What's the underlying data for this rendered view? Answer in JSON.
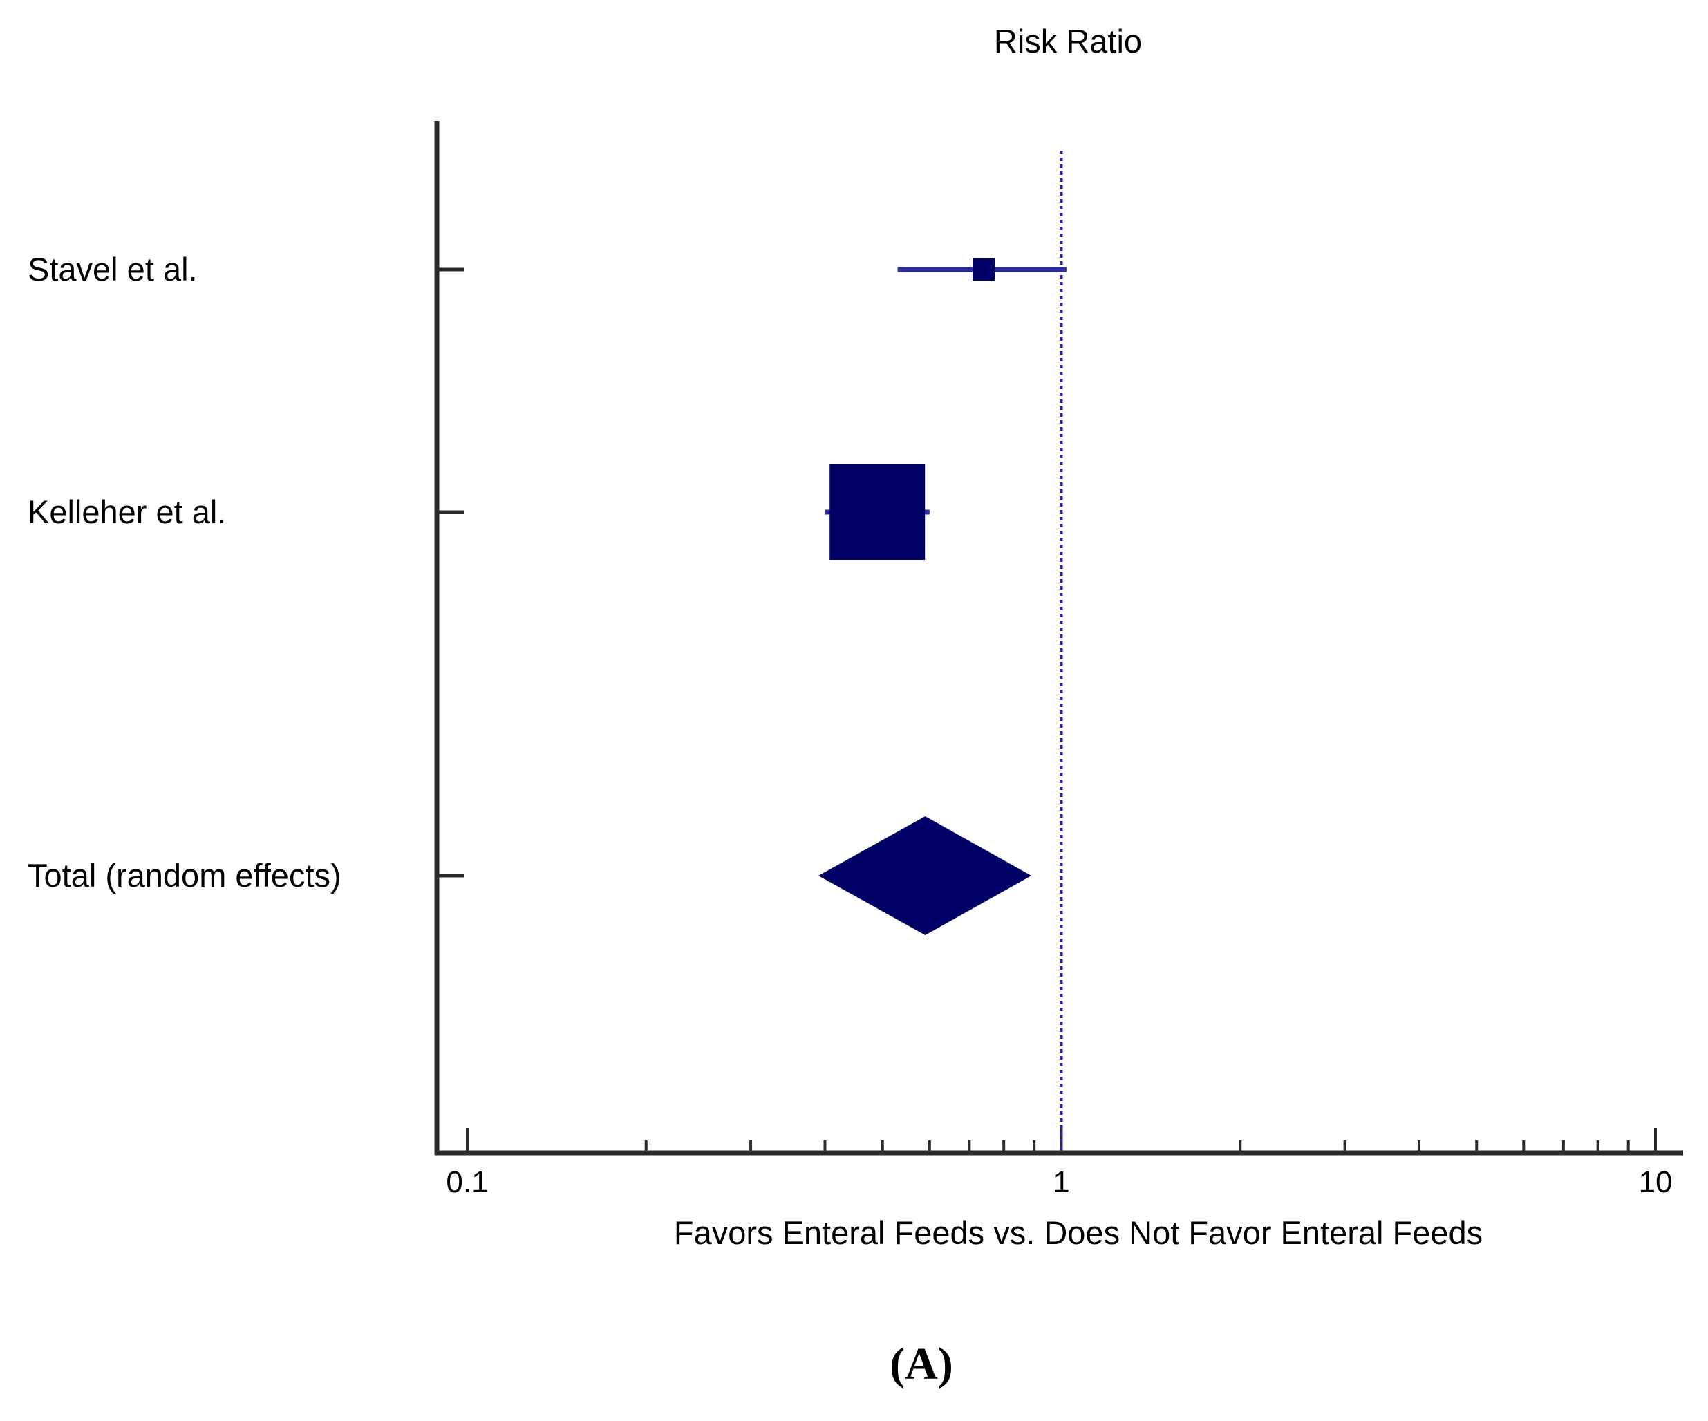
{
  "chart_data": {
    "type": "forest",
    "title": "Risk Ratio",
    "xlabel": "Favors Enteral Feeds vs. Does Not Favor Enteral Feeds",
    "panel_label": "(A)",
    "x_scale": "log",
    "xlim": [
      0.095,
      11
    ],
    "x_ticks": [
      {
        "value": 0.1,
        "label": "0.1"
      },
      {
        "value": 1,
        "label": "1"
      },
      {
        "value": 10,
        "label": "10"
      }
    ],
    "x_minor_ticks": [
      0.2,
      0.3,
      0.4,
      0.5,
      0.6,
      0.7,
      0.8,
      0.9,
      2,
      3,
      4,
      5,
      6,
      7,
      8,
      9
    ],
    "reference_line": 1,
    "studies": [
      {
        "name": "Stavel et al.",
        "estimate": 0.74,
        "ci": [
          0.53,
          1.02
        ],
        "weight": "small"
      },
      {
        "name": "Kelleher et al.",
        "estimate": 0.49,
        "ci": [
          0.4,
          0.6
        ],
        "weight": "large"
      }
    ],
    "pooled": {
      "name": "Total (random effects)",
      "estimate": 0.59,
      "ci": [
        0.39,
        0.89
      ]
    },
    "colors": {
      "marker": "#000066",
      "ci_line": "#2e2e94",
      "reference_line": "#2323b0",
      "axis": "#2b2b2b"
    }
  }
}
